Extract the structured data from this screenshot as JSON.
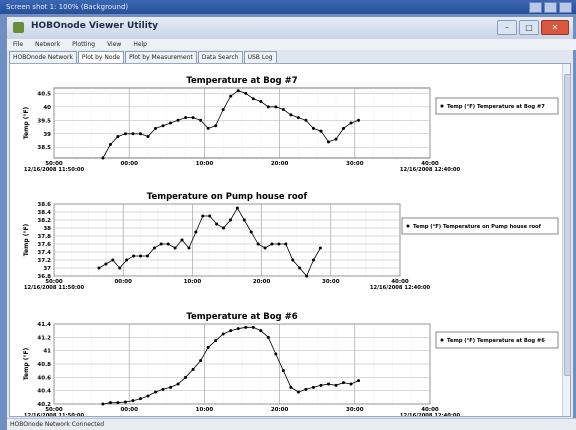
{
  "outer": {
    "title": "Screen shot 1: 100% (Background)"
  },
  "window": {
    "title": "HOBOnode Viewer Utility"
  },
  "menu": [
    "File",
    "Network",
    "Plotting",
    "View",
    "Help"
  ],
  "tabs": [
    "HOBOnode Network",
    "Plot by Node",
    "Plot by Measurement",
    "Data Search",
    "USB Log"
  ],
  "active_tab": 1,
  "status": "HOBOnode Network Connected",
  "chart_data": [
    {
      "type": "line",
      "title": "Temperature at Bog #7",
      "ylabel": "Temp (°F)",
      "ylim": [
        38.1,
        40.7
      ],
      "yticks": [
        "40.5",
        "40",
        "39.5",
        "39",
        "38.5"
      ],
      "ytick_values": [
        40.5,
        40.0,
        39.5,
        39.0,
        38.5
      ],
      "xlim": [
        -10,
        40
      ],
      "xticks": [
        "50:00",
        "00:00",
        "10:00",
        "20:00",
        "30:00",
        "40:00"
      ],
      "xtick_values": [
        -10,
        0,
        10,
        20,
        30,
        40
      ],
      "x_start_label": "12/16/2008 11:50:00",
      "x_end_label": "12/16/2008 12:40:00",
      "legend": "Temp (°F) Temperature at Bog #7",
      "x": [
        -3.5,
        -2.5,
        -1.5,
        -0.5,
        0.5,
        1.5,
        2.5,
        3.5,
        4.5,
        5.5,
        6.5,
        7.5,
        8.5,
        9.5,
        10.5,
        11.5,
        12.5,
        13.5,
        14.5,
        15.5,
        16.5,
        17.5,
        18.5,
        19.5,
        20.5,
        21.5,
        22.5,
        23.5,
        24.5,
        25.5,
        26.5,
        27.5,
        28.5,
        29.5,
        30.5
      ],
      "values": [
        38.1,
        38.6,
        38.9,
        39.0,
        39.0,
        39.0,
        38.9,
        39.2,
        39.3,
        39.4,
        39.5,
        39.6,
        39.6,
        39.5,
        39.2,
        39.3,
        39.9,
        40.4,
        40.6,
        40.5,
        40.3,
        40.2,
        40.0,
        40.0,
        39.9,
        39.7,
        39.6,
        39.5,
        39.2,
        39.1,
        38.7,
        38.8,
        39.2,
        39.4,
        39.5
      ]
    },
    {
      "type": "line",
      "title": "Temperature on Pump house roof",
      "ylabel": "Temp (°F)",
      "ylim": [
        36.8,
        38.6
      ],
      "yticks": [
        "38.6",
        "38.4",
        "38.2",
        "38",
        "37.8",
        "37.6",
        "37.4",
        "37.2",
        "37",
        "36.8"
      ],
      "ytick_values": [
        38.6,
        38.4,
        38.2,
        38.0,
        37.8,
        37.6,
        37.4,
        37.2,
        37.0,
        36.8
      ],
      "xlim": [
        -10,
        40
      ],
      "xticks": [
        "50:00",
        "00:00",
        "10:00",
        "20:00",
        "30:00",
        "40:00"
      ],
      "xtick_values": [
        -10,
        0,
        10,
        20,
        30,
        40
      ],
      "x_start_label": "12/16/2008 11:50:00",
      "x_end_label": "12/16/2008 12:40:00",
      "legend": "Temp (°F) Temperature on Pump house roof",
      "x": [
        -3.5,
        -2.5,
        -1.5,
        -0.5,
        0.5,
        1.5,
        2.5,
        3.5,
        4.5,
        5.5,
        6.5,
        7.5,
        8.5,
        9.5,
        10.5,
        11.5,
        12.5,
        13.5,
        14.5,
        15.5,
        16.5,
        17.5,
        18.5,
        19.5,
        20.5,
        21.5,
        22.5,
        23.5,
        24.5,
        25.5,
        26.5,
        27.5,
        28.5
      ],
      "values": [
        37.0,
        37.1,
        37.2,
        37.0,
        37.2,
        37.3,
        37.3,
        37.3,
        37.5,
        37.6,
        37.6,
        37.5,
        37.7,
        37.5,
        37.9,
        38.3,
        38.3,
        38.1,
        38.0,
        38.2,
        38.5,
        38.2,
        37.9,
        37.6,
        37.5,
        37.6,
        37.6,
        37.6,
        37.2,
        37.0,
        36.8,
        37.2,
        37.5
      ]
    },
    {
      "type": "line",
      "title": "Temperature at Bog #6",
      "ylabel": "Temp (°F)",
      "ylim": [
        40.2,
        41.4
      ],
      "yticks": [
        "41.4",
        "41.2",
        "41",
        "40.8",
        "40.6",
        "40.4",
        "40.2"
      ],
      "ytick_values": [
        41.4,
        41.2,
        41.0,
        40.8,
        40.6,
        40.4,
        40.2
      ],
      "xlim": [
        -10,
        40
      ],
      "xticks": [
        "50:00",
        "00:00",
        "10:00",
        "20:00",
        "30:00",
        "40:00"
      ],
      "xtick_values": [
        -10,
        0,
        10,
        20,
        30,
        40
      ],
      "x_start_label": "12/16/2008 11:50:00",
      "x_end_label": "12/16/2008 12:40:00",
      "legend": "Temp (°F) Temperature at Bog #6",
      "x": [
        -3.5,
        -2.5,
        -1.5,
        -0.5,
        0.5,
        1.5,
        2.5,
        3.5,
        4.5,
        5.5,
        6.5,
        7.5,
        8.5,
        9.5,
        10.5,
        11.5,
        12.5,
        13.5,
        14.5,
        15.5,
        16.5,
        17.5,
        18.5,
        19.5,
        20.5,
        21.5,
        22.5,
        23.5,
        24.5,
        25.5,
        26.5,
        27.5,
        28.5,
        29.5,
        30.5
      ],
      "values": [
        40.2,
        40.22,
        40.22,
        40.23,
        40.25,
        40.28,
        40.32,
        40.38,
        40.42,
        40.45,
        40.5,
        40.6,
        40.72,
        40.85,
        41.05,
        41.15,
        41.25,
        41.3,
        41.33,
        41.35,
        41.35,
        41.3,
        41.2,
        40.95,
        40.7,
        40.45,
        40.38,
        40.42,
        40.45,
        40.48,
        40.5,
        40.48,
        40.52,
        40.5,
        40.55
      ]
    }
  ]
}
